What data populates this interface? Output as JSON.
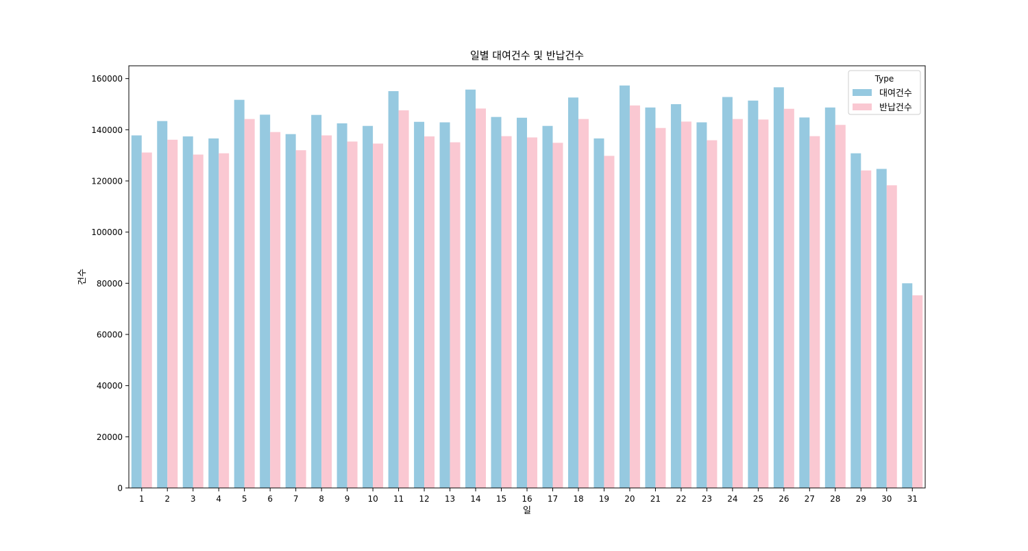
{
  "chart_data": {
    "type": "bar",
    "title": "일별 대여건수 및 반납건수",
    "xlabel": "일",
    "ylabel": "건수",
    "categories": [
      "1",
      "2",
      "3",
      "4",
      "5",
      "6",
      "7",
      "8",
      "9",
      "10",
      "11",
      "12",
      "13",
      "14",
      "15",
      "16",
      "17",
      "18",
      "19",
      "20",
      "21",
      "22",
      "23",
      "24",
      "25",
      "26",
      "27",
      "28",
      "29",
      "30",
      "31"
    ],
    "ylim": [
      0,
      165000
    ],
    "yticks": [
      0,
      20000,
      40000,
      60000,
      80000,
      100000,
      120000,
      140000,
      160000
    ],
    "ytick_labels": [
      "0",
      "20000",
      "40000",
      "60000",
      "80000",
      "100000",
      "120000",
      "140000",
      "160000"
    ],
    "grid": false,
    "legend": {
      "title": "Type",
      "position": "top-right"
    },
    "series": [
      {
        "name": "대여건수",
        "color": "#96c9e0",
        "values": [
          137800,
          143400,
          137400,
          136600,
          151700,
          145900,
          138300,
          145800,
          142500,
          141500,
          155100,
          143100,
          142900,
          155700,
          145000,
          144700,
          141500,
          152600,
          136600,
          157300,
          148700,
          150000,
          142900,
          152800,
          151400,
          156600,
          144800,
          148700,
          130800,
          124700,
          80000
        ]
      },
      {
        "name": "반납건수",
        "color": "#fac8d2",
        "values": [
          131100,
          136100,
          130300,
          130800,
          144200,
          139100,
          132000,
          137800,
          135400,
          134600,
          147600,
          137400,
          135100,
          148300,
          137500,
          137000,
          134900,
          144200,
          129800,
          149500,
          140700,
          143200,
          135900,
          144200,
          144000,
          148200,
          137500,
          141900,
          124100,
          118300,
          75300
        ]
      }
    ]
  }
}
